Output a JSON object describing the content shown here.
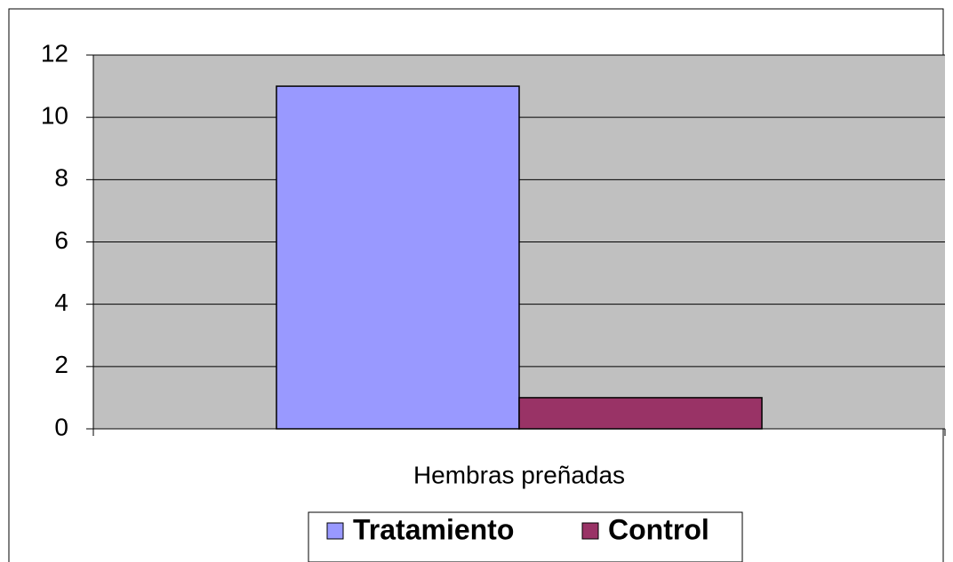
{
  "chart_data": {
    "type": "bar",
    "categories": [
      "Hembras preñadas"
    ],
    "series": [
      {
        "name": "Tratamiento",
        "color": "#9999ff",
        "values": [
          11
        ]
      },
      {
        "name": "Control",
        "color": "#993366",
        "values": [
          1
        ]
      }
    ],
    "ylim": [
      0,
      12
    ],
    "yticks": [
      0,
      2,
      4,
      6,
      8,
      10,
      12
    ],
    "grid": true,
    "legend": "bottom"
  }
}
